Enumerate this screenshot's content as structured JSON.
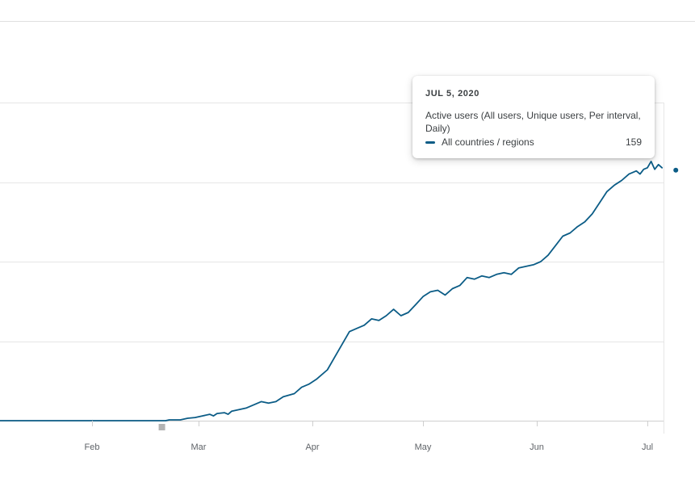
{
  "colors": {
    "series": "#0b5c86",
    "grid": "#e6e6e6",
    "axis": "#cfcfcf",
    "marker": "#b3b3b3"
  },
  "tooltip": {
    "date": "JUL 5, 2020",
    "metric": "Active users (All users, Unique users, Per interval, Daily)",
    "row_label": "All countries / regions",
    "row_value": "159"
  },
  "chart_data": {
    "type": "line",
    "title": "",
    "xlabel": "",
    "ylabel": "",
    "x_range": [
      "2020-01-07",
      "2020-07-09"
    ],
    "ylim": [
      0,
      200
    ],
    "grid": true,
    "x_tick_labels": [
      {
        "date": "2020-02-01",
        "label": "Feb"
      },
      {
        "date": "2020-03-01",
        "label": "Mar"
      },
      {
        "date": "2020-04-01",
        "label": "Apr"
      },
      {
        "date": "2020-05-01",
        "label": "May"
      },
      {
        "date": "2020-06-01",
        "label": "Jun"
      },
      {
        "date": "2020-07-01",
        "label": "Jul"
      }
    ],
    "annotations": [
      {
        "type": "marker",
        "date": "2020-02-20"
      }
    ],
    "highlight": {
      "date": "2020-07-05",
      "value": 159
    },
    "series": [
      {
        "name": "All countries / regions",
        "points": [
          [
            "2020-01-07",
            0
          ],
          [
            "2020-02-01",
            0
          ],
          [
            "2020-02-21",
            0
          ],
          [
            "2020-02-22",
            0.5
          ],
          [
            "2020-02-25",
            0.5
          ],
          [
            "2020-02-27",
            1.5
          ],
          [
            "2020-02-29",
            2
          ],
          [
            "2020-03-02",
            3
          ],
          [
            "2020-03-04",
            4
          ],
          [
            "2020-03-05",
            3
          ],
          [
            "2020-03-06",
            4.5
          ],
          [
            "2020-03-08",
            5
          ],
          [
            "2020-03-09",
            4
          ],
          [
            "2020-03-10",
            6
          ],
          [
            "2020-03-12",
            7
          ],
          [
            "2020-03-14",
            8
          ],
          [
            "2020-03-16",
            10
          ],
          [
            "2020-03-18",
            12
          ],
          [
            "2020-03-20",
            11
          ],
          [
            "2020-03-22",
            12
          ],
          [
            "2020-03-24",
            15
          ],
          [
            "2020-03-27",
            17
          ],
          [
            "2020-03-29",
            21
          ],
          [
            "2020-03-31",
            23
          ],
          [
            "2020-04-02",
            26
          ],
          [
            "2020-04-05",
            32
          ],
          [
            "2020-04-07",
            40
          ],
          [
            "2020-04-09",
            48
          ],
          [
            "2020-04-11",
            56
          ],
          [
            "2020-04-13",
            58
          ],
          [
            "2020-04-15",
            60
          ],
          [
            "2020-04-17",
            64
          ],
          [
            "2020-04-19",
            63
          ],
          [
            "2020-04-21",
            66
          ],
          [
            "2020-04-23",
            70
          ],
          [
            "2020-04-25",
            66
          ],
          [
            "2020-04-27",
            68
          ],
          [
            "2020-04-29",
            73
          ],
          [
            "2020-05-01",
            78
          ],
          [
            "2020-05-03",
            81
          ],
          [
            "2020-05-05",
            82
          ],
          [
            "2020-05-07",
            79
          ],
          [
            "2020-05-09",
            83
          ],
          [
            "2020-05-11",
            85
          ],
          [
            "2020-05-13",
            90
          ],
          [
            "2020-05-15",
            89
          ],
          [
            "2020-05-17",
            91
          ],
          [
            "2020-05-19",
            90
          ],
          [
            "2020-05-21",
            92
          ],
          [
            "2020-05-23",
            93
          ],
          [
            "2020-05-25",
            92
          ],
          [
            "2020-05-27",
            96
          ],
          [
            "2020-05-29",
            97
          ],
          [
            "2020-05-31",
            98
          ],
          [
            "2020-06-02",
            100
          ],
          [
            "2020-06-04",
            104
          ],
          [
            "2020-06-06",
            110
          ],
          [
            "2020-06-08",
            116
          ],
          [
            "2020-06-10",
            118
          ],
          [
            "2020-06-12",
            122
          ],
          [
            "2020-06-14",
            125
          ],
          [
            "2020-06-16",
            130
          ],
          [
            "2020-06-18",
            137
          ],
          [
            "2020-06-20",
            144
          ],
          [
            "2020-06-22",
            148
          ],
          [
            "2020-06-24",
            151
          ],
          [
            "2020-06-26",
            155
          ],
          [
            "2020-06-28",
            157
          ],
          [
            "2020-06-29",
            155
          ],
          [
            "2020-06-30",
            158
          ],
          [
            "2020-07-01",
            159
          ],
          [
            "2020-07-02",
            163
          ],
          [
            "2020-07-03",
            158
          ],
          [
            "2020-07-04",
            161
          ],
          [
            "2020-07-05",
            159
          ]
        ]
      }
    ]
  }
}
